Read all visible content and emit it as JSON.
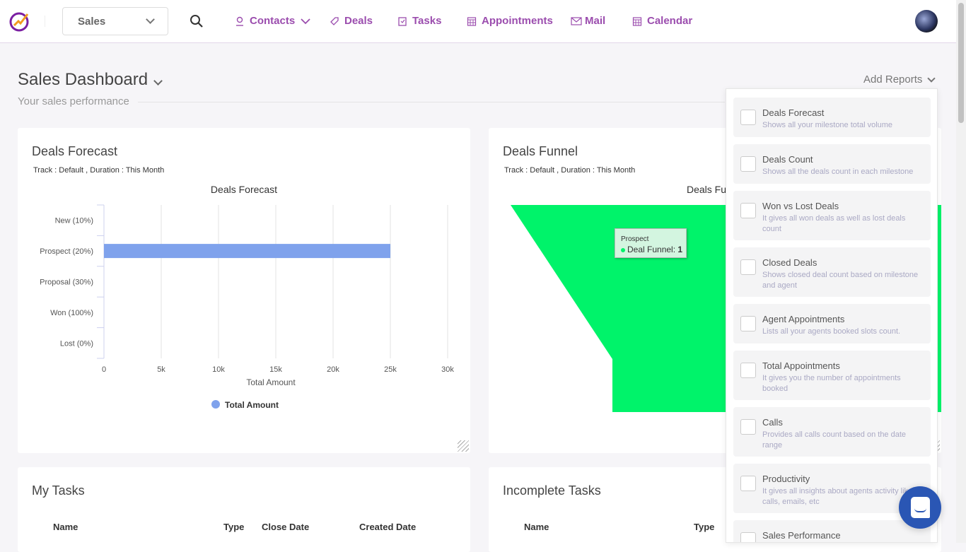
{
  "header": {
    "workspace": "Sales",
    "nav": [
      {
        "label": "Contacts",
        "icon": "user-icon"
      },
      {
        "label": "Deals",
        "icon": "tag-icon"
      },
      {
        "label": "Tasks",
        "icon": "task-icon"
      },
      {
        "label": "Appointments",
        "icon": "calendar-grid-icon"
      },
      {
        "label": "Mail",
        "icon": "mail-icon"
      },
      {
        "label": "Calendar",
        "icon": "calendar-icon"
      }
    ],
    "accent": "#9b4dae"
  },
  "page": {
    "title": "Sales Dashboard",
    "subtitle": "Your sales performance",
    "add_reports": "Add Reports"
  },
  "forecast_card": {
    "title": "Deals Forecast",
    "meta": "Track : Default ,  Duration : This Month"
  },
  "funnel_card": {
    "title": "Deals Funnel",
    "meta": "Track : Default ,  Duration : This Month",
    "chart_title": "Deals Fu",
    "tooltip": {
      "category": "Prospect",
      "series": "Deal Funnel: ",
      "value": "1"
    },
    "color": "#00f36a"
  },
  "tasks_card": {
    "title": "My Tasks",
    "columns": [
      "Name",
      "Type",
      "Close Date",
      "Created Date"
    ]
  },
  "incomplete_card": {
    "title": "Incomplete Tasks",
    "columns": [
      "Name",
      "Type"
    ]
  },
  "reports": [
    {
      "label": "Deals Forecast",
      "desc": "Shows all your milestone total volume"
    },
    {
      "label": "Deals Count",
      "desc": "Shows all the deals count in each milestone"
    },
    {
      "label": "Won vs Lost Deals",
      "desc": "It gives all won deals as well as lost deals count"
    },
    {
      "label": "Closed Deals",
      "desc": "Shows closed deal count based on milestone and agent"
    },
    {
      "label": "Agent Appointments",
      "desc": "Lists all your agents booked slots count."
    },
    {
      "label": "Total Appointments",
      "desc": "It gives you the number of appointments booked"
    },
    {
      "label": "Calls",
      "desc": "Provides all calls count based on the date range"
    },
    {
      "label": "Productivity",
      "desc": "It gives all insights about agents activity like calls, emails, etc"
    },
    {
      "label": "Sales Performance",
      "desc": ""
    }
  ],
  "chart_data": {
    "type": "bar",
    "orientation": "horizontal",
    "title": "Deals Forecast",
    "categories": [
      "New (10%)",
      "Prospect (20%)",
      "Proposal (30%)",
      "Won (100%)",
      "Lost (0%)"
    ],
    "series": [
      {
        "name": "Total Amount",
        "values": [
          0,
          25000,
          0,
          0,
          0
        ],
        "color": "#7fa2ec"
      }
    ],
    "xlabel": "Total Amount",
    "ylabel": "",
    "xlim": [
      0,
      30000
    ],
    "xticks": [
      "0",
      "5k",
      "10k",
      "15k",
      "20k",
      "25k",
      "30k"
    ],
    "grid": true,
    "legend": "bottom"
  }
}
